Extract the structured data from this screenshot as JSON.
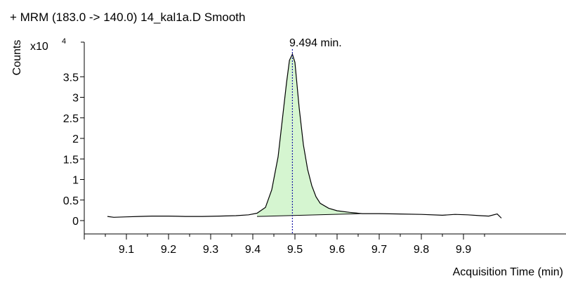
{
  "chart_data": {
    "type": "line",
    "title": "+ MRM (183.0 -> 140.0) 14_kal1a.D  Smooth",
    "xlabel": "Acquisition Time (min)",
    "ylabel": "Counts",
    "y_multiplier": "x10",
    "y_multiplier_exponent": "4",
    "xlim": [
      9.0,
      9.99
    ],
    "ylim": [
      -0.2,
      4.25
    ],
    "x_ticks": [
      "9.1",
      "9.2",
      "9.3",
      "9.4",
      "9.5",
      "9.6",
      "9.7",
      "9.8",
      "9.9"
    ],
    "y_ticks": [
      "0",
      "0.5",
      "1",
      "1.5",
      "2",
      "2.5",
      "3",
      "3.5"
    ],
    "annotation": "9.494 min.",
    "peak_apex_x": 9.494,
    "integration_baseline": {
      "x": [
        9.41,
        9.66
      ],
      "y": [
        0.1,
        0.17
      ]
    },
    "series": [
      {
        "x": [
          9.055,
          9.07,
          9.1,
          9.13,
          9.16,
          9.2,
          9.24,
          9.28,
          9.32,
          9.36,
          9.39,
          9.41,
          9.43,
          9.445,
          9.46,
          9.47,
          9.48,
          9.487,
          9.494,
          9.5,
          9.505,
          9.51,
          9.52,
          9.53,
          9.54,
          9.55,
          9.56,
          9.58,
          9.6,
          9.63,
          9.66,
          9.7,
          9.75,
          9.8,
          9.85,
          9.88,
          9.91,
          9.94,
          9.96,
          9.98,
          9.99
        ],
        "y": [
          0.1,
          0.08,
          0.09,
          0.1,
          0.11,
          0.11,
          0.1,
          0.1,
          0.11,
          0.12,
          0.14,
          0.18,
          0.32,
          0.75,
          1.55,
          2.45,
          3.35,
          3.9,
          4.05,
          3.85,
          3.3,
          2.75,
          1.85,
          1.25,
          0.85,
          0.58,
          0.42,
          0.3,
          0.24,
          0.2,
          0.17,
          0.17,
          0.16,
          0.15,
          0.13,
          0.15,
          0.14,
          0.12,
          0.11,
          0.16,
          0.06
        ]
      }
    ],
    "colors": {
      "line": "#000000",
      "fill": "#d5f5d0",
      "marker_line": "#1a1aa6"
    },
    "grid": false
  }
}
